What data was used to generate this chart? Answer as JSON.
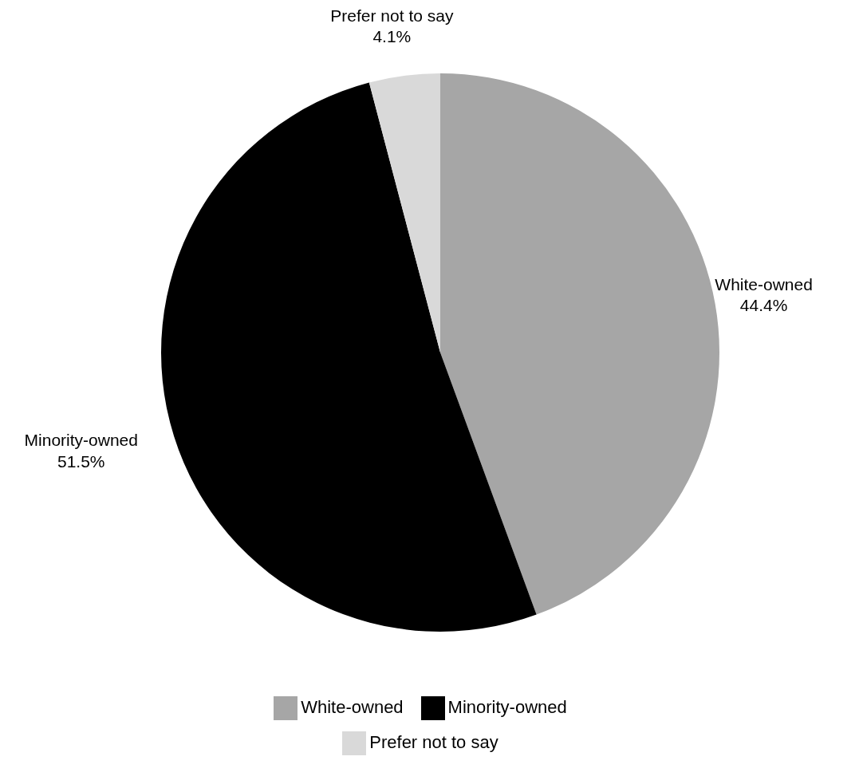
{
  "chart_data": {
    "type": "pie",
    "categories": [
      "White-owned",
      "Minority-owned",
      "Prefer not to say"
    ],
    "values": [
      44.4,
      51.5,
      4.1
    ],
    "value_labels": [
      "44.4%",
      "51.5%",
      "4.1%"
    ],
    "colors": [
      "#a6a6a6",
      "#000000",
      "#d9d9d9"
    ],
    "legend": "bottom"
  }
}
